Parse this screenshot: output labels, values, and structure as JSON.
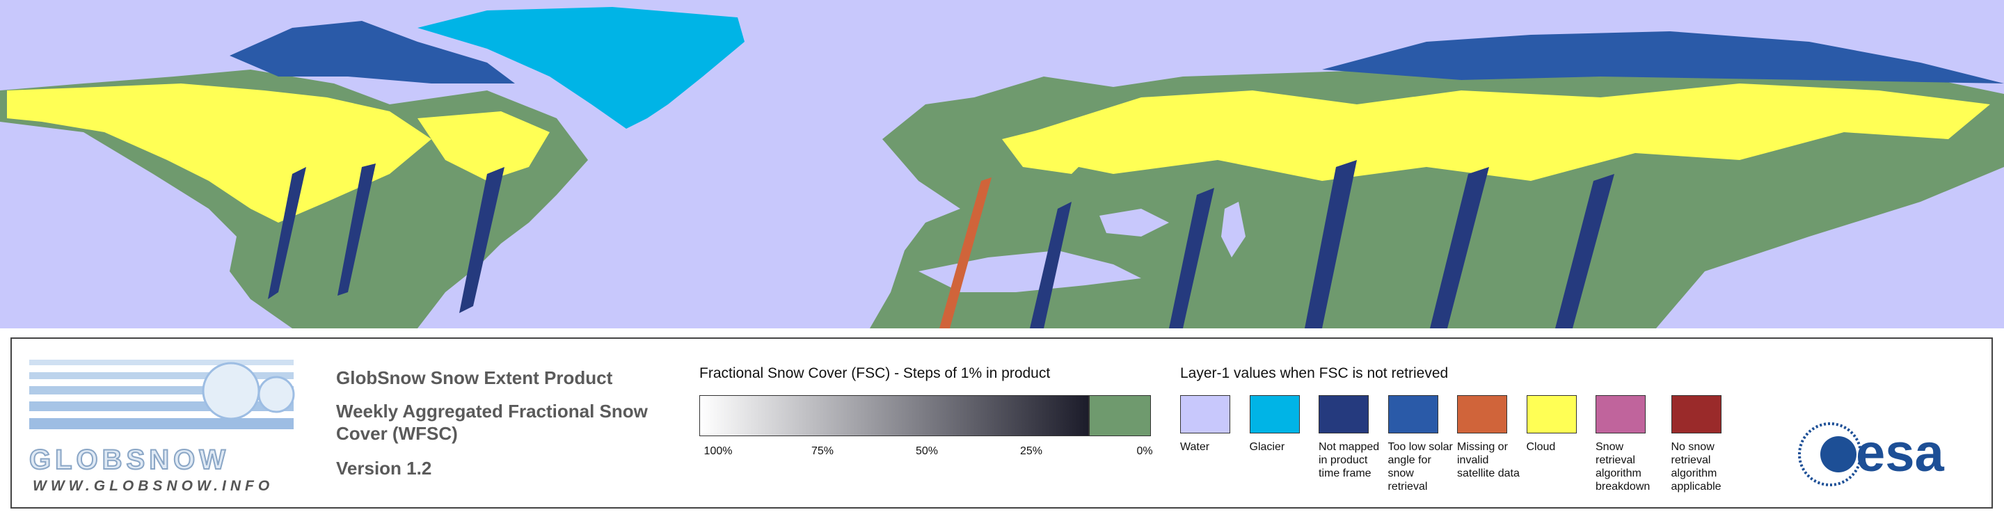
{
  "logo": {
    "name": "GLOBSNOW",
    "url": "WWW.GLOBSNOW.INFO"
  },
  "titles": [
    "GlobSnow Snow Extent Product",
    "Weekly Aggregated Fractional Snow Cover (WFSC)",
    "Version 1.2"
  ],
  "fsc_scale": {
    "title": "Fractional Snow Cover (FSC) - Steps of 1% in product",
    "ticks": [
      "100%",
      "75%",
      "50%",
      "25%",
      "0%"
    ],
    "start_color": "#ffffff",
    "end_color": "#1c1c2a",
    "zero_color": "#6f9a6e"
  },
  "layer1": {
    "title": "Layer-1 values when FSC is not retrieved",
    "items": [
      {
        "label": "Water",
        "color": "#c8c8fc"
      },
      {
        "label": "Glacier",
        "color": "#00b4e6"
      },
      {
        "label": "Not mapped in product time frame",
        "color": "#253a7e"
      },
      {
        "label": "Too low solar angle for snow retrieval",
        "color": "#2a5aa8"
      },
      {
        "label": "Missing or invalid satellite data",
        "color": "#d0643a"
      },
      {
        "label": "Cloud",
        "color": "#ffff55"
      },
      {
        "label": "Snow retrieval algorithm breakdown",
        "color": "#c0649c"
      },
      {
        "label": "No snow retrieval algorithm applicable",
        "color": "#9a2a2a"
      }
    ]
  },
  "agency_logo": "esa"
}
